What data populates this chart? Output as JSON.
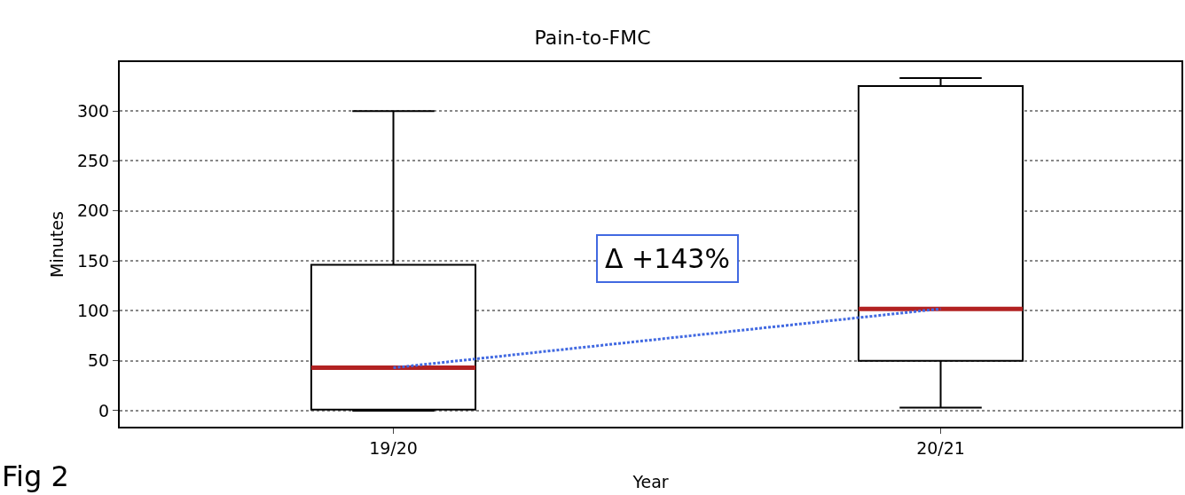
{
  "chart_data": {
    "type": "box",
    "title": "Pain-to-FMC",
    "xlabel": "Year",
    "ylabel": "Minutes",
    "categories": [
      "19/20",
      "20/21"
    ],
    "series": [
      {
        "type": "line",
        "color": "#4169e1",
        "values": [
          43,
          102
        ],
        "line_style": "dotted",
        "marker": "none"
      },
      {
        "type": "box",
        "color": "#000000",
        "boxes": [
          {
            "low": 0,
            "q1": 1,
            "median": 43,
            "q3": 146,
            "high": 300
          },
          {
            "low": 3,
            "q1": 50,
            "median": 102,
            "q3": 325,
            "high": 333
          }
        ]
      }
    ],
    "ylim": [
      -16,
      349
    ],
    "yticks": [
      0,
      50,
      100,
      150,
      200,
      250,
      300
    ],
    "grid": "y",
    "annotations": [
      "Δ +143%",
      "Fig 2"
    ]
  }
}
